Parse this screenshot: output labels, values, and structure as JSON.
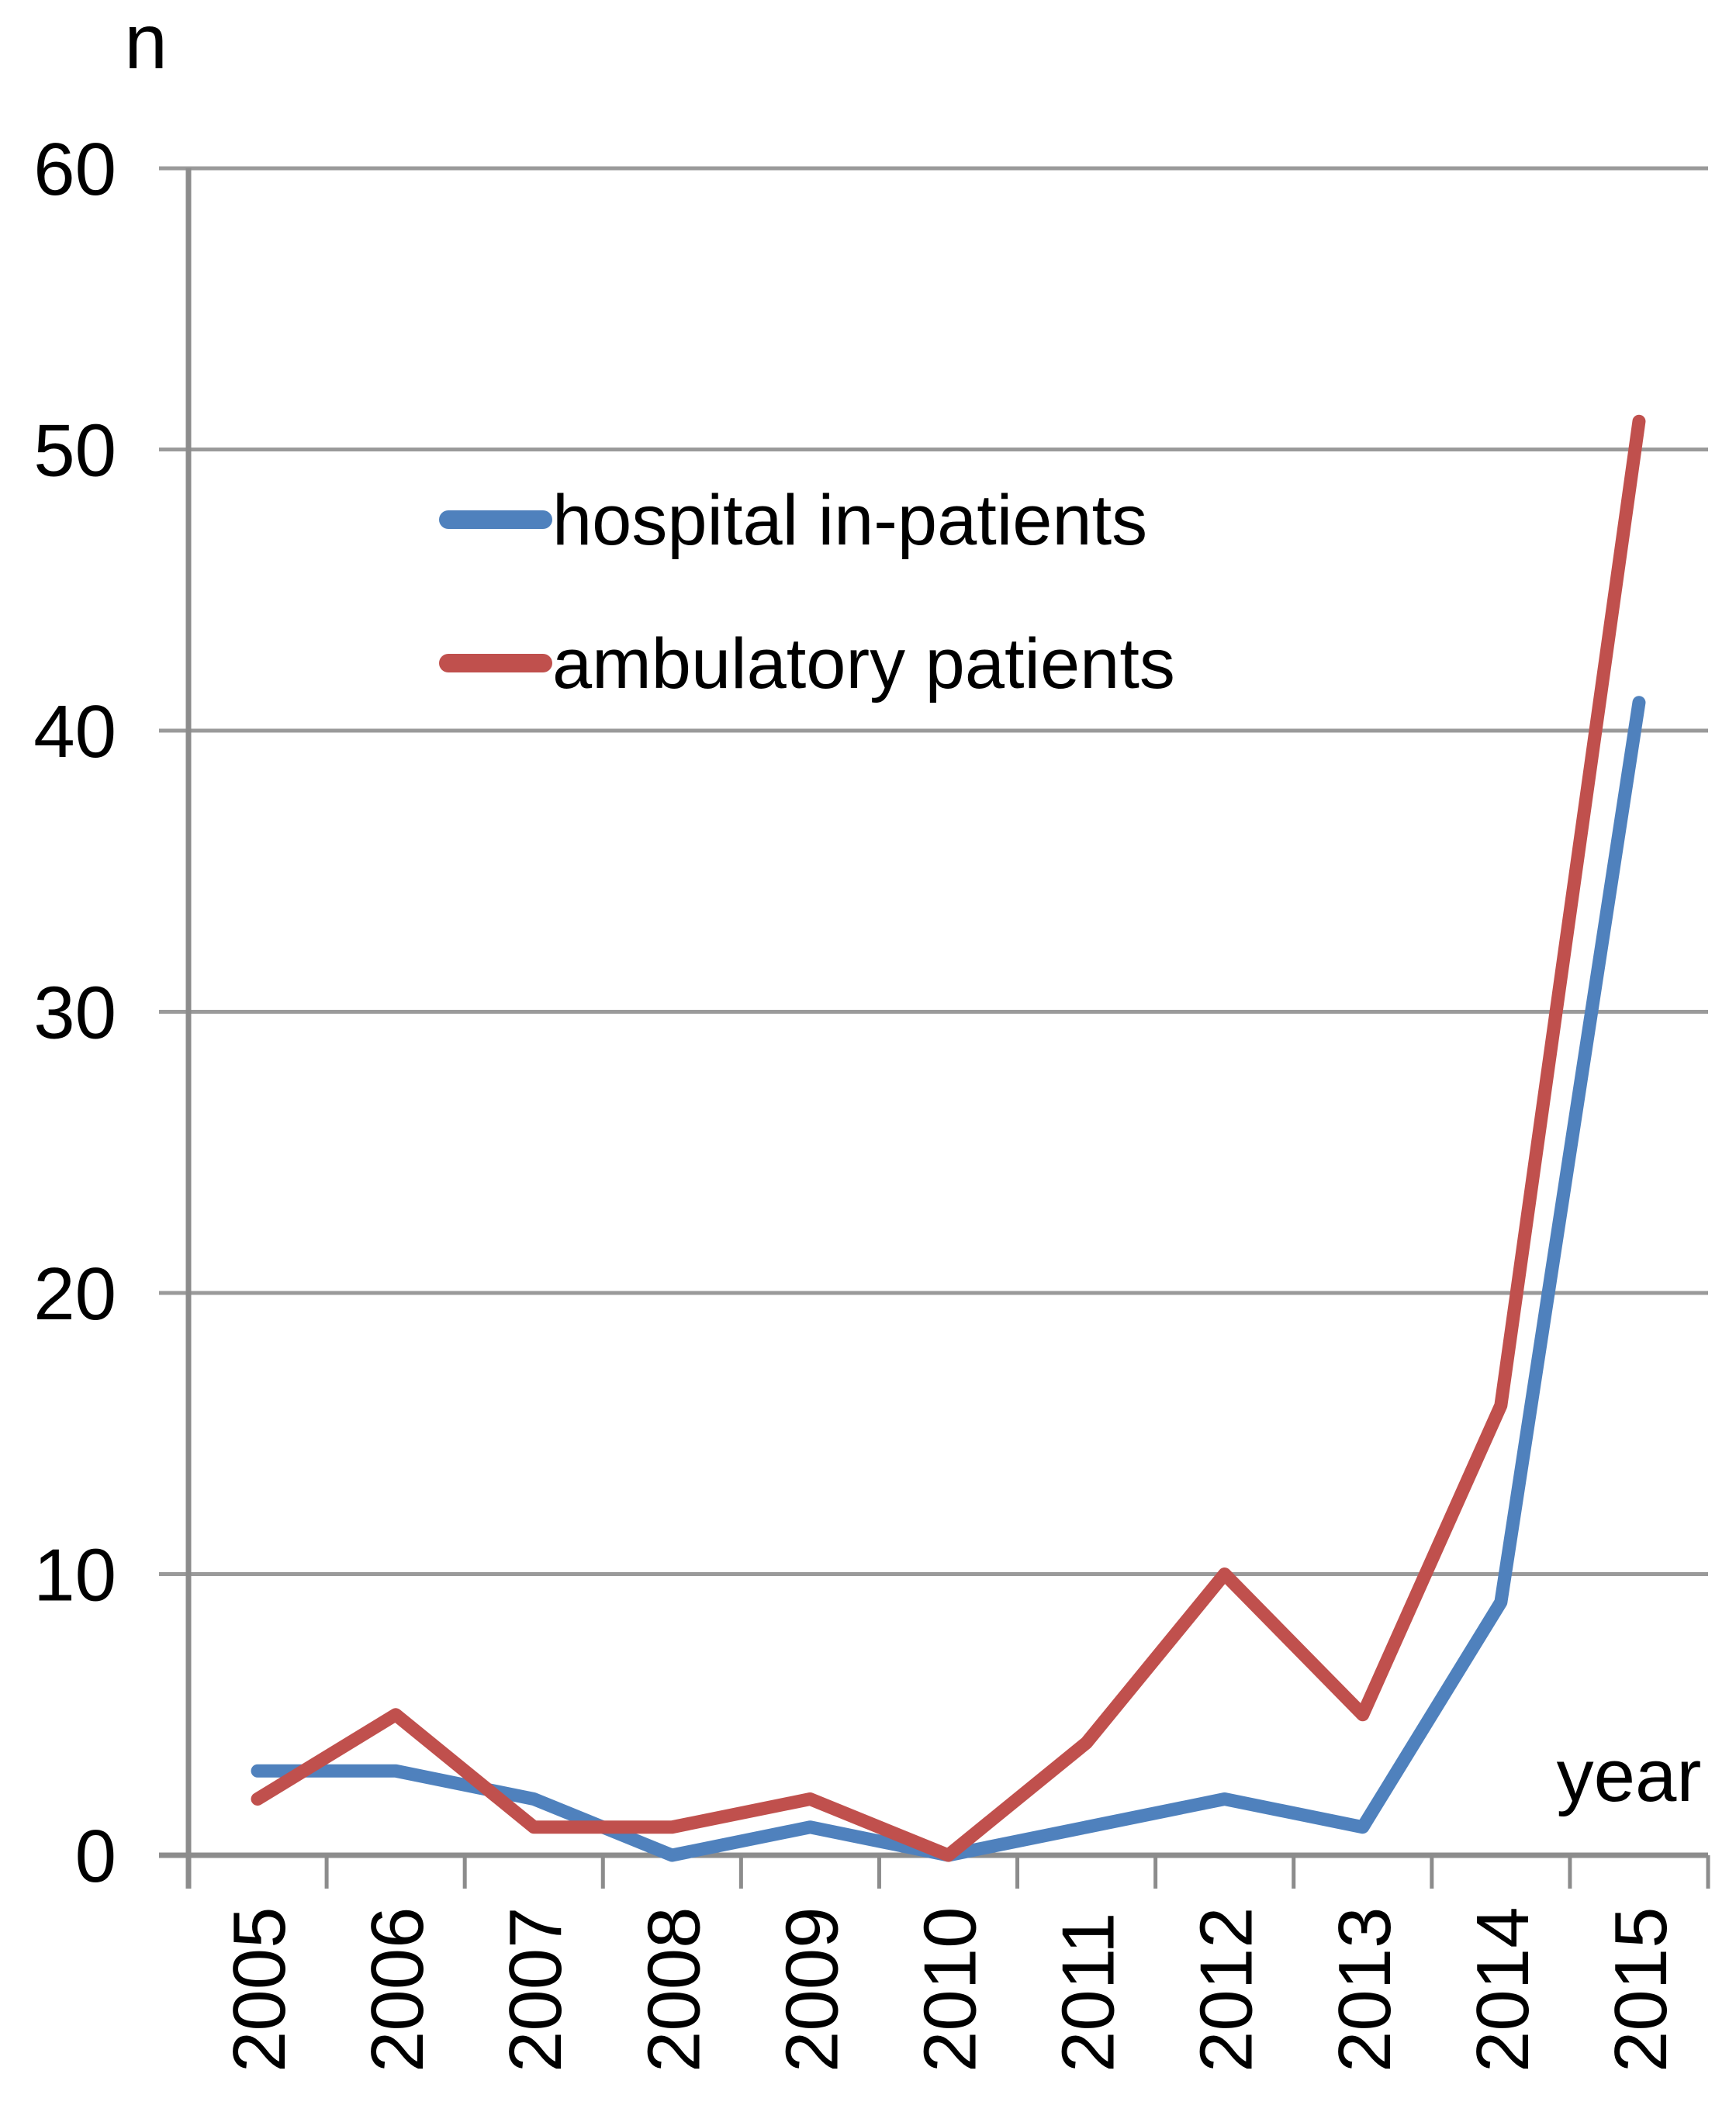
{
  "chart_data": {
    "type": "line",
    "title": "",
    "ylabel": "n",
    "xlabel": "year",
    "x": [
      2005,
      2006,
      2007,
      2008,
      2009,
      2010,
      2011,
      2012,
      2013,
      2014,
      2015
    ],
    "series": [
      {
        "name": "hospital in-patients",
        "color": "#4F81BD",
        "values": [
          3,
          3,
          2,
          0,
          1,
          0,
          1,
          2,
          1,
          9,
          41
        ]
      },
      {
        "name": "ambulatory patients",
        "color": "#C0504D",
        "values": [
          2,
          5,
          1,
          1,
          2,
          0,
          4,
          10,
          5,
          16,
          51
        ]
      }
    ],
    "ylim": [
      0,
      60
    ],
    "yticks": [
      0,
      10,
      20,
      30,
      40,
      50,
      60
    ],
    "grid": true,
    "legend_position": "upper-left-inside"
  },
  "colors": {
    "background": "#FFFFFF",
    "gridline": "#9A9A9A",
    "axis": "#8C8C8C",
    "text": "#000000",
    "series_blue": "#4F81BD",
    "series_red": "#C0504D"
  }
}
